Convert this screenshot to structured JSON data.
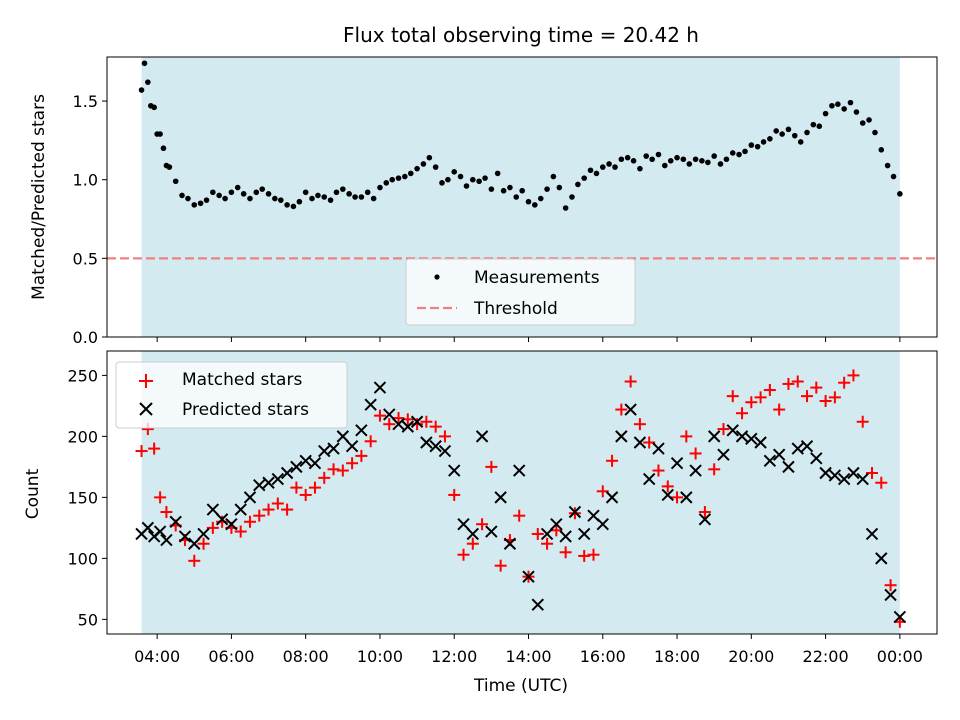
{
  "title": "Flux total observing time = 20.42 h",
  "colors": {
    "background_band": "#d3eaf0",
    "measurement": "#000000",
    "threshold": "#f08080",
    "matched": "#ff0000",
    "predicted": "#000000"
  },
  "x_ticks": [
    "04:00",
    "06:00",
    "08:00",
    "10:00",
    "12:00",
    "14:00",
    "16:00",
    "18:00",
    "20:00",
    "22:00",
    "00:00"
  ],
  "xlabel": "Time (UTC)",
  "top": {
    "ylabel": "Matched/Predicted stars",
    "y_ticks": [
      "0.0",
      "0.5",
      "1.0",
      "1.5"
    ],
    "legend": {
      "measurements": "Measurements",
      "threshold": "Threshold"
    }
  },
  "bottom": {
    "ylabel": "Count",
    "y_ticks": [
      "50",
      "100",
      "150",
      "200",
      "250"
    ],
    "legend": {
      "matched": "Matched stars",
      "predicted": "Predicted stars"
    }
  },
  "chart_data": [
    {
      "type": "scatter",
      "title": "Flux total observing time = 20.42 h",
      "ylabel": "Matched/Predicted stars",
      "ylim": [
        0,
        1.78
      ],
      "xlim_hours": [
        2.65,
        25.0
      ],
      "observing_window_hours": [
        3.58,
        24.0
      ],
      "threshold": 0.5,
      "series": [
        {
          "name": "Measurements",
          "x": [
            3.58,
            3.66,
            3.75,
            3.83,
            3.92,
            4.0,
            4.08,
            4.17,
            4.25,
            4.33,
            4.5,
            4.67,
            4.83,
            5.0,
            5.17,
            5.33,
            5.5,
            5.67,
            5.83,
            6.0,
            6.17,
            6.33,
            6.5,
            6.67,
            6.83,
            7.0,
            7.17,
            7.33,
            7.5,
            7.67,
            7.83,
            8.0,
            8.17,
            8.33,
            8.5,
            8.67,
            8.83,
            9.0,
            9.17,
            9.33,
            9.5,
            9.67,
            9.83,
            10.0,
            10.17,
            10.33,
            10.5,
            10.67,
            10.83,
            11.0,
            11.17,
            11.33,
            11.5,
            11.67,
            11.83,
            12.0,
            12.17,
            12.33,
            12.5,
            12.67,
            12.83,
            13.0,
            13.17,
            13.33,
            13.5,
            13.67,
            13.83,
            14.0,
            14.17,
            14.33,
            14.5,
            14.67,
            14.83,
            15.0,
            15.17,
            15.33,
            15.5,
            15.67,
            15.83,
            16.0,
            16.17,
            16.33,
            16.5,
            16.67,
            16.83,
            17.0,
            17.17,
            17.33,
            17.5,
            17.67,
            17.83,
            18.0,
            18.17,
            18.33,
            18.5,
            18.67,
            18.83,
            19.0,
            19.17,
            19.33,
            19.5,
            19.67,
            19.83,
            20.0,
            20.17,
            20.33,
            20.5,
            20.67,
            20.83,
            21.0,
            21.17,
            21.33,
            21.5,
            21.67,
            21.83,
            22.0,
            22.17,
            22.33,
            22.5,
            22.67,
            22.83,
            23.0,
            23.17,
            23.33,
            23.5,
            23.67,
            23.83,
            24.0
          ],
          "y": [
            1.57,
            1.74,
            1.62,
            1.47,
            1.46,
            1.29,
            1.29,
            1.2,
            1.09,
            1.08,
            0.99,
            0.9,
            0.88,
            0.84,
            0.85,
            0.87,
            0.92,
            0.9,
            0.88,
            0.92,
            0.95,
            0.91,
            0.88,
            0.92,
            0.94,
            0.91,
            0.88,
            0.87,
            0.84,
            0.83,
            0.86,
            0.92,
            0.88,
            0.9,
            0.89,
            0.87,
            0.92,
            0.94,
            0.91,
            0.89,
            0.89,
            0.92,
            0.88,
            0.95,
            0.98,
            1.0,
            1.01,
            1.02,
            1.04,
            1.07,
            1.1,
            1.14,
            1.08,
            0.98,
            1.0,
            1.05,
            1.02,
            0.96,
            1.0,
            0.99,
            1.01,
            0.94,
            1.04,
            0.93,
            0.95,
            0.89,
            0.93,
            0.86,
            0.84,
            0.88,
            0.94,
            1.02,
            0.95,
            0.82,
            0.89,
            0.97,
            1.01,
            1.06,
            1.04,
            1.08,
            1.1,
            1.08,
            1.13,
            1.14,
            1.12,
            1.07,
            1.15,
            1.13,
            1.16,
            1.09,
            1.12,
            1.14,
            1.13,
            1.1,
            1.13,
            1.12,
            1.11,
            1.15,
            1.1,
            1.13,
            1.17,
            1.16,
            1.18,
            1.22,
            1.21,
            1.24,
            1.26,
            1.31,
            1.29,
            1.32,
            1.28,
            1.24,
            1.3,
            1.35,
            1.34,
            1.42,
            1.47,
            1.48,
            1.45,
            1.49,
            1.43,
            1.36,
            1.38,
            1.3,
            1.19,
            1.09,
            1.02,
            0.91
          ]
        },
        {
          "name": "Threshold",
          "x": [
            2.65,
            25.0
          ],
          "y": [
            0.5,
            0.5
          ]
        }
      ]
    },
    {
      "type": "scatter",
      "xlabel": "Time (UTC)",
      "ylabel": "Count",
      "ylim": [
        38,
        270
      ],
      "xlim_hours": [
        2.65,
        25.0
      ],
      "series": [
        {
          "name": "Matched stars",
          "x": [
            3.58,
            3.75,
            3.92,
            4.08,
            4.25,
            4.5,
            4.75,
            5.0,
            5.25,
            5.5,
            5.75,
            6.0,
            6.25,
            6.5,
            6.75,
            7.0,
            7.25,
            7.5,
            7.75,
            8.0,
            8.25,
            8.5,
            8.75,
            9.0,
            9.25,
            9.5,
            9.75,
            10.0,
            10.25,
            10.5,
            10.75,
            11.0,
            11.25,
            11.5,
            11.75,
            12.0,
            12.25,
            12.5,
            12.75,
            13.0,
            13.25,
            13.5,
            13.75,
            14.0,
            14.25,
            14.5,
            14.75,
            15.0,
            15.25,
            15.5,
            15.75,
            16.0,
            16.25,
            16.5,
            16.75,
            17.0,
            17.25,
            17.5,
            17.75,
            18.0,
            18.25,
            18.5,
            18.75,
            19.0,
            19.25,
            19.5,
            19.75,
            20.0,
            20.25,
            20.5,
            20.75,
            21.0,
            21.25,
            21.5,
            21.75,
            22.0,
            22.25,
            22.5,
            22.75,
            23.0,
            23.25,
            23.5,
            23.75,
            24.0
          ],
          "y": [
            188,
            206,
            190,
            150,
            138,
            127,
            115,
            98,
            112,
            125,
            130,
            125,
            122,
            130,
            135,
            140,
            145,
            140,
            158,
            152,
            158,
            166,
            173,
            172,
            178,
            184,
            196,
            217,
            210,
            215,
            214,
            210,
            212,
            208,
            200,
            152,
            103,
            112,
            128,
            175,
            94,
            115,
            135,
            85,
            120,
            112,
            123,
            105,
            137,
            102,
            103,
            155,
            180,
            222,
            245,
            210,
            195,
            172,
            159,
            150,
            200,
            186,
            138,
            173,
            206,
            233,
            219,
            228,
            232,
            238,
            222,
            243,
            245,
            233,
            240,
            229,
            232,
            244,
            250,
            212,
            170,
            162,
            78,
            48
          ]
        },
        {
          "name": "Predicted stars",
          "x": [
            3.58,
            3.75,
            3.92,
            4.08,
            4.25,
            4.5,
            4.75,
            5.0,
            5.25,
            5.5,
            5.75,
            6.0,
            6.25,
            6.5,
            6.75,
            7.0,
            7.25,
            7.5,
            7.75,
            8.0,
            8.25,
            8.5,
            8.75,
            9.0,
            9.25,
            9.5,
            9.75,
            10.0,
            10.25,
            10.5,
            10.75,
            11.0,
            11.25,
            11.5,
            11.75,
            12.0,
            12.25,
            12.5,
            12.75,
            13.0,
            13.25,
            13.5,
            13.75,
            14.0,
            14.25,
            14.5,
            14.75,
            15.0,
            15.25,
            15.5,
            15.75,
            16.0,
            16.25,
            16.5,
            16.75,
            17.0,
            17.25,
            17.5,
            17.75,
            18.0,
            18.25,
            18.5,
            18.75,
            19.0,
            19.25,
            19.5,
            19.75,
            20.0,
            20.25,
            20.5,
            20.75,
            21.0,
            21.25,
            21.5,
            21.75,
            22.0,
            22.25,
            22.5,
            22.75,
            23.0,
            23.25,
            23.5,
            23.75,
            24.0
          ],
          "y": [
            120,
            125,
            118,
            122,
            115,
            130,
            118,
            112,
            120,
            140,
            132,
            128,
            140,
            150,
            160,
            162,
            165,
            170,
            175,
            180,
            178,
            188,
            190,
            200,
            192,
            205,
            226,
            240,
            218,
            210,
            208,
            212,
            195,
            192,
            188,
            172,
            128,
            120,
            200,
            122,
            150,
            112,
            172,
            85,
            62,
            120,
            128,
            118,
            138,
            120,
            135,
            128,
            150,
            200,
            222,
            195,
            165,
            190,
            152,
            178,
            150,
            172,
            132,
            200,
            185,
            205,
            200,
            198,
            195,
            180,
            185,
            175,
            190,
            192,
            182,
            170,
            168,
            165,
            170,
            165,
            120,
            100,
            70,
            52
          ]
        }
      ]
    }
  ]
}
